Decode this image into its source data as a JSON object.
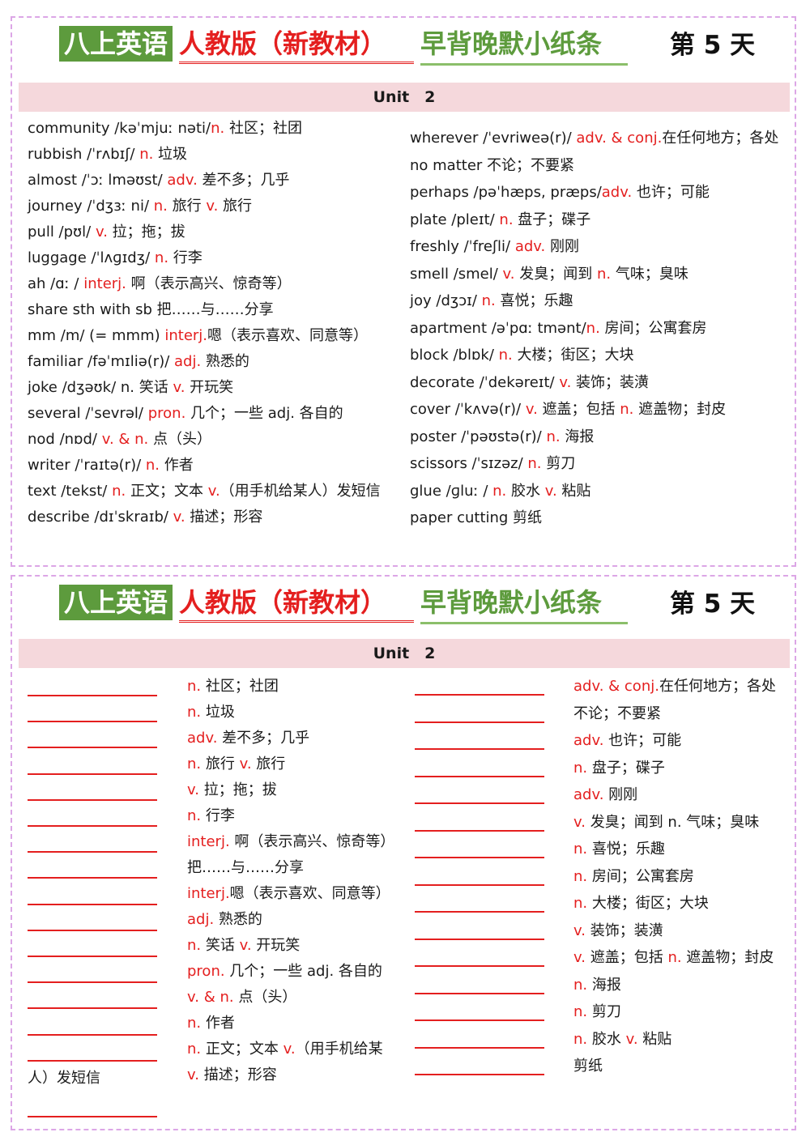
{
  "header": {
    "part1": "八上英语",
    "part2": "人教版（新教材）",
    "part3": "早背晚默小纸条",
    "day": "第 5 天"
  },
  "unit": "Unit　2",
  "colors": {
    "accent_red": "#e41f1f",
    "accent_green": "#5d9b3d",
    "border": "#dca6e6",
    "unit_bar": "#f5d8dc"
  },
  "top_left": [
    {
      "w": "community /kəˈmjuː  nəti/",
      "p": "n.",
      "m": " 社区；社团"
    },
    {
      "w": "rubbish /ˈrʌbɪʃ/",
      "p": " n.",
      "m": " 垃圾"
    },
    {
      "w": "almost /ˈɔː  lməʊst/",
      "p": " adv.",
      "m": " 差不多；几乎"
    },
    {
      "w": "journey /ˈdʒɜː  ni/",
      "p": " n.",
      "m": " 旅行 ",
      "p2": "v.",
      "m2": " 旅行"
    },
    {
      "w": "pull /pʊl/",
      "p": " v.",
      "m": " 拉；拖；拔"
    },
    {
      "w": "luggage /ˈlʌɡɪdʒ/",
      "p": " n.",
      "m": " 行李"
    },
    {
      "w": "ah /ɑː   /",
      "p": " interj.",
      "m": " 啊（表示高兴、惊奇等）"
    },
    {
      "w": "share sth with sb 把……与……分享",
      "p": "",
      "m": ""
    },
    {
      "w": "mm /m/ (= mmm)",
      "p": " interj.",
      "m": "嗯（表示喜欢、同意等）"
    },
    {
      "w": "familiar /fəˈmɪliə(r)/",
      "p": " adj.",
      "m": " 熟悉的"
    },
    {
      "w": "joke /dʒəʊk/ n. 笑话",
      "p": " v.",
      "m": " 开玩笑"
    },
    {
      "w": "several /ˈsevrəl/",
      "p": " pron.",
      "m": " 几个；一些 adj. 各自的"
    },
    {
      "w": "nod /nɒd/",
      "p": " v. & n.",
      "m": " 点（头）"
    },
    {
      "w": "writer /ˈraɪtə(r)/",
      "p": " n.",
      "m": " 作者"
    },
    {
      "w": "text /tekst/",
      "p": " n.",
      "m": " 正文；文本 ",
      "p2": "v.",
      "m2": "（用手机给某人）发短信"
    },
    {
      "w": "describe /dɪˈskraɪb/",
      "p": " v.",
      "m": " 描述；形容"
    }
  ],
  "top_right": [
    {
      "w": "wherever /ˈevriweə(r)/",
      "p": " adv. & conj.",
      "m": "在任何地方；各处"
    },
    {
      "w": "no matter  不论；不要紧",
      "p": "",
      "m": ""
    },
    {
      "w": "perhaps /pəˈhæps, præps/",
      "p": "adv.",
      "m": " 也许；可能"
    },
    {
      "w": "plate /pleɪt/",
      "p": " n.",
      "m": " 盘子；碟子"
    },
    {
      "w": "freshly /ˈfreʃli/",
      "p": " adv.",
      "m": " 刚刚"
    },
    {
      "w": "smell /smel/",
      "p": " v.",
      "m": " 发臭；闻到 ",
      "p2": "n.",
      "m2": " 气味；臭味"
    },
    {
      "w": "joy /dʒɔɪ/",
      "p": " n.",
      "m": " 喜悦；乐趣"
    },
    {
      "w": "apartment /əˈpɑː  tmənt/",
      "p": "n.",
      "m": " 房间；公寓套房"
    },
    {
      "w": "block /blɒk/",
      "p": " n.",
      "m": " 大楼；街区；大块"
    },
    {
      "w": "decorate /ˈdekəreɪt/",
      "p": " v.",
      "m": " 装饰；装潢"
    },
    {
      "w": "cover /ˈkʌvə(r)/",
      "p": " v.",
      "m": " 遮盖；包括 ",
      "p2": "n.",
      "m2": " 遮盖物；封皮"
    },
    {
      "w": "poster /ˈpəʊstə(r)/",
      "p": " n.",
      "m": " 海报"
    },
    {
      "w": "scissors /ˈsɪzəz/",
      "p": " n.",
      "m": " 剪刀"
    },
    {
      "w": "glue /ɡluː   /",
      "p": " n.",
      "m": " 胶水 ",
      "p2": "v.",
      "m2": " 粘贴"
    },
    {
      "w": "paper cutting 剪纸",
      "p": "",
      "m": ""
    }
  ],
  "bottom_left": [
    {
      "p": "n.",
      "m": " 社区；社团"
    },
    {
      "p": "n.",
      "m": " 垃圾"
    },
    {
      "p": "adv.",
      "m": " 差不多；几乎"
    },
    {
      "p": "n.",
      "m": " 旅行 ",
      "p2": "v.",
      "m2": " 旅行"
    },
    {
      "p": "v.",
      "m": " 拉；拖；拔"
    },
    {
      "p": "n.",
      "m": " 行李"
    },
    {
      "p": " interj.",
      "m": " 啊（表示高兴、惊奇等）"
    },
    {
      "p": "",
      "m": "把……与……分享"
    },
    {
      "p": " interj.",
      "m": "嗯（表示喜欢、同意等）"
    },
    {
      "p": "adj.",
      "m": " 熟悉的"
    },
    {
      "p": "n.",
      "m": " 笑话 ",
      "p2": "v.",
      "m2": " 开玩笑"
    },
    {
      "p": "pron.",
      "m": " 几个；一些 adj. 各自的"
    },
    {
      "p": "v. & n.",
      "m": " 点（头）"
    },
    {
      "p": "n.",
      "m": " 作者"
    },
    {
      "p": "n.",
      "m": " 正文；文本 ",
      "p2": "v.",
      "m2": "（用手机给某"
    },
    {
      "p": " v.",
      "m": " 描述；形容"
    }
  ],
  "bottom_left_overflow": "人）发短信",
  "bottom_right": [
    {
      "p": "adv. & conj.",
      "m": "在任何地方；各处"
    },
    {
      "p": "",
      "m": "不论；不要紧"
    },
    {
      "p": "adv.",
      "m": " 也许；可能"
    },
    {
      "p": "n.",
      "m": " 盘子；碟子"
    },
    {
      "p": "adv.",
      "m": " 刚刚"
    },
    {
      "p": "v.",
      "m": " 发臭；闻到 n. 气味；臭味"
    },
    {
      "p": "n.",
      "m": " 喜悦；乐趣"
    },
    {
      "p": "n.",
      "m": " 房间；公寓套房"
    },
    {
      "p": "n.",
      "m": " 大楼；街区；大块"
    },
    {
      "p": " v.",
      "m": " 装饰；装潢"
    },
    {
      "p": "v.",
      "m": " 遮盖；包括 ",
      "p2": "n.",
      "m2": " 遮盖物；封皮"
    },
    {
      "p": "n.",
      "m": " 海报"
    },
    {
      "p": "n.",
      "m": " 剪刀"
    },
    {
      "p": "n.",
      "m": " 胶水 ",
      "p2": "v.",
      "m2": " 粘贴"
    },
    {
      "p": "",
      "m": "剪纸"
    }
  ]
}
